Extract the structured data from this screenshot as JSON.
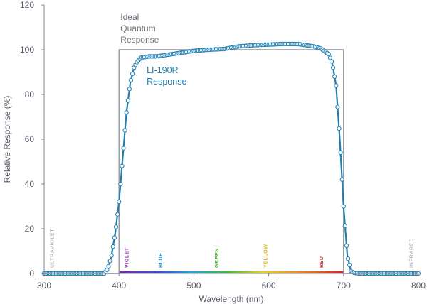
{
  "chart_data": {
    "type": "line",
    "title": "",
    "xlabel": "Wavelength (nm)",
    "ylabel": "Relative Response (%)",
    "xlim": [
      300,
      800
    ],
    "ylim": [
      0,
      120
    ],
    "xticks": [
      "300",
      "400",
      "500",
      "600",
      "700",
      "800"
    ],
    "yticks": [
      "0",
      "20",
      "40",
      "60",
      "80",
      "100",
      "120"
    ],
    "series": [
      {
        "name": "LI-190R Response",
        "label_lines": [
          "LI-190R",
          "Response"
        ],
        "color": "#1f7fae",
        "markers": "circle",
        "x": [
          300,
          380,
          385,
          390,
          395,
          400,
          405,
          410,
          415,
          420,
          425,
          430,
          440,
          450,
          460,
          480,
          500,
          520,
          540,
          560,
          580,
          600,
          620,
          640,
          660,
          670,
          680,
          685,
          690,
          695,
          700,
          705,
          710,
          715,
          720,
          800
        ],
        "y": [
          0,
          0,
          2,
          8,
          18,
          32,
          52,
          72,
          85,
          92,
          95,
          96.5,
          97,
          97,
          97.5,
          98.5,
          99.5,
          100,
          100.3,
          101.5,
          102,
          102.3,
          102.6,
          102.5,
          101.5,
          100.5,
          98,
          94,
          84,
          60,
          30,
          8,
          1,
          0.2,
          0,
          0
        ]
      },
      {
        "name": "Ideal Quantum Response",
        "label_lines": [
          "Ideal",
          "Quantum",
          "Response"
        ],
        "color": "#8f939b",
        "markers": "none",
        "x": [
          300,
          400,
          400,
          700,
          700,
          800
        ],
        "y": [
          0,
          0,
          100,
          100,
          0,
          0
        ]
      }
    ],
    "spectrum_bands": [
      {
        "label": "VIOLET",
        "wavelength": 410,
        "color": "#8b2fa5"
      },
      {
        "label": "BLUE",
        "wavelength": 455,
        "color": "#2c8fd6"
      },
      {
        "label": "GREEN",
        "wavelength": 530,
        "color": "#4caf32"
      },
      {
        "label": "YELLOW",
        "wavelength": 595,
        "color": "#e0b21c"
      },
      {
        "label": "RED",
        "wavelength": 670,
        "color": "#c8252c"
      }
    ],
    "edge_labels": [
      {
        "label": "ULTRAVIOLET",
        "wavelength": 310
      },
      {
        "label": "INFRARED",
        "wavelength": 790
      }
    ]
  }
}
